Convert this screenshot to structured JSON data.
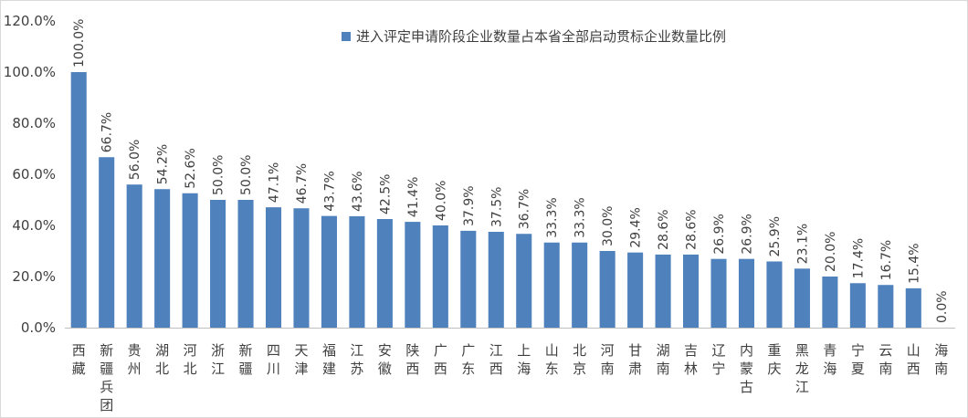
{
  "chart_data": {
    "type": "bar",
    "title": "",
    "xlabel": "",
    "ylabel": "",
    "ylim": [
      0,
      120
    ],
    "y_ticks": [
      "0.0%",
      "20.0%",
      "40.0%",
      "60.0%",
      "80.0%",
      "100.0%",
      "120.0%"
    ],
    "categories": [
      "西藏",
      "新疆兵团",
      "贵州",
      "湖北",
      "河北",
      "浙江",
      "新疆",
      "四川",
      "天津",
      "福建",
      "江苏",
      "安徽",
      "陕西",
      "广西",
      "广东",
      "江西",
      "上海",
      "山东",
      "北京",
      "河南",
      "甘肃",
      "湖南",
      "吉林",
      "辽宁",
      "内蒙古",
      "重庆",
      "黑龙江",
      "青海",
      "宁夏",
      "云南",
      "山西",
      "海南"
    ],
    "series": [
      {
        "name": "进入评定申请阶段企业数量占本省全部启动贯标企业数量比例",
        "color": "#4f81bd",
        "values": [
          100.0,
          66.7,
          56.0,
          54.2,
          52.6,
          50.0,
          50.0,
          47.1,
          46.7,
          43.7,
          43.6,
          42.5,
          41.4,
          40.0,
          37.9,
          37.5,
          36.7,
          33.3,
          33.3,
          30.0,
          29.4,
          28.6,
          28.6,
          26.9,
          26.9,
          25.9,
          23.1,
          20.0,
          17.4,
          16.7,
          15.4,
          0.0
        ],
        "labels": [
          "100.0%",
          "66.7%",
          "56.0%",
          "54.2%",
          "52.6%",
          "50.0%",
          "50.0%",
          "47.1%",
          "46.7%",
          "43.7%",
          "43.6%",
          "42.5%",
          "41.4%",
          "40.0%",
          "37.9%",
          "37.5%",
          "36.7%",
          "33.3%",
          "33.3%",
          "30.0%",
          "29.4%",
          "28.6%",
          "28.6%",
          "26.9%",
          "26.9%",
          "25.9%",
          "23.1%",
          "20.0%",
          "17.4%",
          "16.7%",
          "15.4%",
          "0.0%"
        ]
      }
    ],
    "legend_position": "top-center",
    "grid": false
  },
  "colors": {
    "axis": "#bfbfbf",
    "text": "#404040",
    "bar": "#4f81bd"
  }
}
